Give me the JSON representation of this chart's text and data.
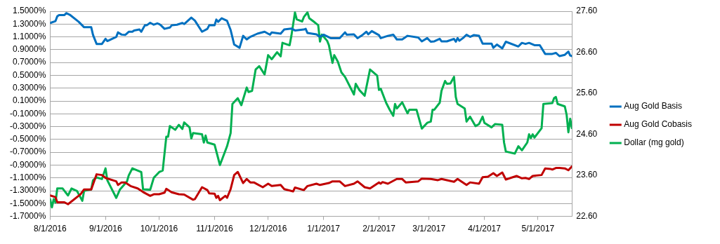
{
  "chart_data": {
    "type": "line",
    "xlim": [
      "2016-08-01",
      "2017-05-20"
    ],
    "xticks": [
      {
        "value": "2016-08-01",
        "label": "8/1/2016"
      },
      {
        "value": "2016-09-01",
        "label": "9/1/2016"
      },
      {
        "value": "2016-10-01",
        "label": "10/1/2016"
      },
      {
        "value": "2016-11-01",
        "label": "11/1/2016"
      },
      {
        "value": "2016-12-01",
        "label": "12/1/2016"
      },
      {
        "value": "2017-01-01",
        "label": "1/1/2017"
      },
      {
        "value": "2017-02-01",
        "label": "2/1/2017"
      },
      {
        "value": "2017-03-01",
        "label": "3/1/2017"
      },
      {
        "value": "2017-04-01",
        "label": "4/1/2017"
      },
      {
        "value": "2017-05-01",
        "label": "5/1/2017"
      }
    ],
    "ylim": [
      -1.7,
      1.5
    ],
    "yticks": [
      {
        "value": -1.7,
        "label": "-1.7000%"
      },
      {
        "value": -1.5,
        "label": "-1.5000%"
      },
      {
        "value": -1.3,
        "label": "-1.3000%"
      },
      {
        "value": -1.1,
        "label": "-1.1000%"
      },
      {
        "value": -0.9,
        "label": "-0.9000%"
      },
      {
        "value": -0.7,
        "label": "-0.7000%"
      },
      {
        "value": -0.5,
        "label": "-0.5000%"
      },
      {
        "value": -0.3,
        "label": "-0.3000%"
      },
      {
        "value": -0.1,
        "label": "-0.1000%"
      },
      {
        "value": 0.1,
        "label": "0.1000%"
      },
      {
        "value": 0.3,
        "label": "0.3000%"
      },
      {
        "value": 0.5,
        "label": "0.5000%"
      },
      {
        "value": 0.7,
        "label": "0.7000%"
      },
      {
        "value": 0.9,
        "label": "0.9000%"
      },
      {
        "value": 1.1,
        "label": "1.1000%"
      },
      {
        "value": 1.3,
        "label": "1.3000%"
      },
      {
        "value": 1.5,
        "label": "1.5000%"
      }
    ],
    "y2lim": [
      22.6,
      27.6
    ],
    "y2ticks": [
      {
        "value": 22.6,
        "label": "22.60"
      },
      {
        "value": 23.6,
        "label": "23.60"
      },
      {
        "value": 24.6,
        "label": "24.60"
      },
      {
        "value": 25.6,
        "label": "25.60"
      },
      {
        "value": 26.6,
        "label": "26.60"
      },
      {
        "value": 27.6,
        "label": "27.60"
      }
    ],
    "grid": "y",
    "legend": "right",
    "marker": "none",
    "line_style": "solid",
    "series": [
      {
        "name": "Aug Gold Basis",
        "color": "#0070c0",
        "x": [
          "2016-08-01",
          "2016-08-04",
          "2016-08-05",
          "2016-08-06",
          "2016-08-09",
          "2016-08-10",
          "2016-08-12",
          "2016-08-17",
          "2016-08-20",
          "2016-08-24",
          "2016-08-25",
          "2016-08-27",
          "2016-08-30",
          "2016-09-01",
          "2016-09-02",
          "2016-09-07",
          "2016-09-08",
          "2016-09-10",
          "2016-09-12",
          "2016-09-14",
          "2016-09-16",
          "2016-09-17",
          "2016-09-20",
          "2016-09-21",
          "2016-09-23",
          "2016-09-24",
          "2016-09-26",
          "2016-09-28",
          "2016-09-30",
          "2016-10-01",
          "2016-10-02",
          "2016-10-04",
          "2016-10-07",
          "2016-10-08",
          "2016-10-11",
          "2016-10-14",
          "2016-10-15",
          "2016-10-19",
          "2016-10-21",
          "2016-10-25",
          "2016-10-28",
          "2016-10-29",
          "2016-11-01",
          "2016-11-02",
          "2016-11-03",
          "2016-11-05",
          "2016-11-08",
          "2016-11-10",
          "2016-11-12",
          "2016-11-15",
          "2016-11-17",
          "2016-11-19",
          "2016-11-21",
          "2016-11-25",
          "2016-11-29",
          "2016-12-02",
          "2016-12-03",
          "2016-12-08",
          "2016-12-10",
          "2016-12-14",
          "2016-12-16",
          "2016-12-21",
          "2016-12-22",
          "2016-12-23",
          "2016-12-28",
          "2016-12-30",
          "2017-01-01",
          "2017-01-05",
          "2017-01-10",
          "2017-01-13",
          "2017-01-14",
          "2017-01-18",
          "2017-01-20",
          "2017-01-23",
          "2017-01-25",
          "2017-01-26",
          "2017-01-28",
          "2017-02-01",
          "2017-02-02",
          "2017-02-06",
          "2017-02-09",
          "2017-02-11",
          "2017-02-14",
          "2017-02-17",
          "2017-02-23",
          "2017-02-25",
          "2017-02-28",
          "2017-03-02",
          "2017-03-04",
          "2017-03-07",
          "2017-03-08",
          "2017-03-11",
          "2017-03-15",
          "2017-03-16",
          "2017-03-17",
          "2017-03-18",
          "2017-03-20",
          "2017-03-22",
          "2017-03-24",
          "2017-03-26",
          "2017-03-29",
          "2017-03-31",
          "2017-04-05",
          "2017-04-06",
          "2017-04-08",
          "2017-04-11",
          "2017-04-13",
          "2017-04-20",
          "2017-04-22",
          "2017-04-24",
          "2017-04-26",
          "2017-04-29",
          "2017-05-02",
          "2017-05-05",
          "2017-05-09",
          "2017-05-11",
          "2017-05-13",
          "2017-05-16",
          "2017-05-18",
          "2017-05-19",
          "2017-05-20"
        ],
        "values": [
          1.317,
          1.346,
          1.42,
          1.44,
          1.44,
          1.47,
          1.445,
          1.335,
          1.25,
          1.25,
          1.13,
          0.99,
          0.99,
          1.07,
          1.035,
          1.1,
          1.17,
          1.135,
          1.13,
          1.18,
          1.18,
          1.2,
          1.215,
          1.18,
          1.28,
          1.28,
          1.32,
          1.29,
          1.31,
          1.3,
          1.28,
          1.225,
          1.245,
          1.28,
          1.29,
          1.317,
          1.3,
          1.4,
          1.354,
          1.18,
          1.225,
          1.28,
          1.28,
          1.37,
          1.335,
          1.39,
          1.35,
          1.207,
          0.98,
          0.93,
          1.116,
          1.06,
          1.1,
          1.15,
          1.18,
          1.134,
          1.17,
          1.15,
          1.215,
          1.23,
          1.2,
          1.215,
          1.225,
          1.16,
          1.14,
          1.1,
          1.134,
          1.08,
          1.08,
          1.17,
          1.134,
          1.14,
          1.08,
          1.134,
          1.18,
          1.14,
          1.19,
          1.127,
          1.08,
          1.116,
          1.134,
          1.06,
          1.06,
          1.116,
          1.09,
          1.03,
          1.08,
          1.024,
          1.03,
          1.07,
          1.03,
          1.03,
          1.068,
          1.024,
          1.08,
          1.04,
          1.08,
          1.134,
          1.1,
          1.127,
          1.116,
          0.995,
          0.995,
          0.93,
          0.98,
          0.92,
          1.024,
          0.95,
          1.006,
          0.99,
          1.006,
          0.97,
          0.97,
          0.834,
          0.834,
          0.85,
          0.8,
          0.82,
          0.87,
          0.81,
          0.8
        ]
      },
      {
        "name": "Aug Gold Cobasis",
        "color": "#c00000",
        "x": [
          "2016-08-01",
          "2016-08-04",
          "2016-08-05",
          "2016-08-09",
          "2016-08-11",
          "2016-08-18",
          "2016-08-20",
          "2016-08-24",
          "2016-08-27",
          "2016-08-30",
          "2016-09-01",
          "2016-09-07",
          "2016-09-08",
          "2016-09-10",
          "2016-09-12",
          "2016-09-15",
          "2016-09-19",
          "2016-09-22",
          "2016-09-26",
          "2016-09-28",
          "2016-10-01",
          "2016-10-04",
          "2016-10-05",
          "2016-10-08",
          "2016-10-12",
          "2016-10-15",
          "2016-10-20",
          "2016-10-21",
          "2016-10-25",
          "2016-10-28",
          "2016-10-29",
          "2016-11-01",
          "2016-11-02",
          "2016-11-03",
          "2016-11-04",
          "2016-11-07",
          "2016-11-08",
          "2016-11-10",
          "2016-11-12",
          "2016-11-14",
          "2016-11-17",
          "2016-11-19",
          "2016-11-21",
          "2016-11-23",
          "2016-11-28",
          "2016-12-01",
          "2016-12-03",
          "2016-12-08",
          "2016-12-10",
          "2016-12-15",
          "2016-12-16",
          "2016-12-21",
          "2016-12-23",
          "2016-12-28",
          "2016-12-30",
          "2017-01-04",
          "2017-01-06",
          "2017-01-10",
          "2017-01-13",
          "2017-01-18",
          "2017-01-20",
          "2017-01-24",
          "2017-01-27",
          "2017-02-01",
          "2017-02-02",
          "2017-02-03",
          "2017-02-06",
          "2017-02-11",
          "2017-02-14",
          "2017-02-16",
          "2017-02-23",
          "2017-02-25",
          "2017-03-02",
          "2017-03-06",
          "2017-03-08",
          "2017-03-15",
          "2017-03-17",
          "2017-03-22",
          "2017-03-24",
          "2017-03-29",
          "2017-03-31",
          "2017-04-03",
          "2017-04-06",
          "2017-04-08",
          "2017-04-11",
          "2017-04-13",
          "2017-04-19",
          "2017-04-22",
          "2017-04-24",
          "2017-04-26",
          "2017-04-28",
          "2017-05-03",
          "2017-05-05",
          "2017-05-08",
          "2017-05-09",
          "2017-05-11",
          "2017-05-13",
          "2017-05-16",
          "2017-05-18",
          "2017-05-20"
        ],
        "values": [
          -1.373,
          -1.4,
          -1.48,
          -1.48,
          -1.51,
          -1.355,
          -1.28,
          -1.28,
          -1.044,
          -1.055,
          -1.1,
          -1.154,
          -1.21,
          -1.17,
          -1.17,
          -1.227,
          -1.264,
          -1.32,
          -1.38,
          -1.355,
          -1.355,
          -1.33,
          -1.27,
          -1.325,
          -1.355,
          -1.36,
          -1.44,
          -1.43,
          -1.245,
          -1.29,
          -1.34,
          -1.345,
          -1.41,
          -1.38,
          -1.447,
          -1.38,
          -1.41,
          -1.275,
          -1.055,
          -1.007,
          -1.18,
          -1.117,
          -1.17,
          -1.17,
          -1.245,
          -1.19,
          -1.227,
          -1.21,
          -1.275,
          -1.31,
          -1.25,
          -1.29,
          -1.227,
          -1.19,
          -1.21,
          -1.18,
          -1.154,
          -1.154,
          -1.227,
          -1.19,
          -1.154,
          -1.245,
          -1.264,
          -1.17,
          -1.19,
          -1.165,
          -1.19,
          -1.117,
          -1.117,
          -1.17,
          -1.154,
          -1.11,
          -1.117,
          -1.135,
          -1.117,
          -1.16,
          -1.117,
          -1.21,
          -1.17,
          -1.19,
          -1.09,
          -1.08,
          -1.026,
          -1.07,
          -1.015,
          -1.125,
          -1.07,
          -1.106,
          -1.1,
          -1.117,
          -1.07,
          -1.055,
          -0.952,
          -0.96,
          -0.97,
          -0.945,
          -0.945,
          -0.952,
          -0.98,
          -0.92
        ]
      },
      {
        "name": "Dollar (mg gold)",
        "color": "#00b050",
        "axis": "y2",
        "x": [
          "2016-08-01",
          "2016-08-02",
          "2016-08-03",
          "2016-08-04",
          "2016-08-05",
          "2016-08-08",
          "2016-08-11",
          "2016-08-13",
          "2016-08-16",
          "2016-08-19",
          "2016-08-20",
          "2016-08-24",
          "2016-08-25",
          "2016-08-27",
          "2016-08-30",
          "2016-09-01",
          "2016-09-02",
          "2016-09-07",
          "2016-09-09",
          "2016-09-13",
          "2016-09-14",
          "2016-09-16",
          "2016-09-21",
          "2016-09-22",
          "2016-09-26",
          "2016-09-28",
          "2016-10-01",
          "2016-10-03",
          "2016-10-05",
          "2016-10-06",
          "2016-10-07",
          "2016-10-10",
          "2016-10-12",
          "2016-10-14",
          "2016-10-15",
          "2016-10-18",
          "2016-10-19",
          "2016-10-20",
          "2016-10-25",
          "2016-10-26",
          "2016-10-27",
          "2016-10-28",
          "2016-11-01",
          "2016-11-03",
          "2016-11-04",
          "2016-11-08",
          "2016-11-10",
          "2016-11-11",
          "2016-11-14",
          "2016-11-16",
          "2016-11-19",
          "2016-11-20",
          "2016-11-22",
          "2016-11-24",
          "2016-11-26",
          "2016-11-29",
          "2016-12-01",
          "2016-12-03",
          "2016-12-06",
          "2016-12-08",
          "2016-12-09",
          "2016-12-13",
          "2016-12-14",
          "2016-12-16",
          "2016-12-17",
          "2016-12-20",
          "2016-12-21",
          "2016-12-23",
          "2016-12-24",
          "2016-12-27",
          "2016-12-29",
          "2016-12-30",
          "2016-12-31",
          "2017-01-03",
          "2017-01-04",
          "2017-01-06",
          "2017-01-07",
          "2017-01-09",
          "2017-01-11",
          "2017-01-13",
          "2017-01-18",
          "2017-01-19",
          "2017-01-21",
          "2017-01-24",
          "2017-01-27",
          "2017-01-31",
          "2017-02-01",
          "2017-02-02",
          "2017-02-05",
          "2017-02-07",
          "2017-02-09",
          "2017-02-10",
          "2017-02-11",
          "2017-02-14",
          "2017-02-17",
          "2017-02-18",
          "2017-02-22",
          "2017-02-25",
          "2017-02-28",
          "2017-03-02",
          "2017-03-03",
          "2017-03-04",
          "2017-03-07",
          "2017-03-08",
          "2017-03-10",
          "2017-03-11",
          "2017-03-13",
          "2017-03-15",
          "2017-03-16",
          "2017-03-17",
          "2017-03-21",
          "2017-03-22",
          "2017-03-24",
          "2017-03-27",
          "2017-03-29",
          "2017-03-31",
          "2017-04-01",
          "2017-04-05",
          "2017-04-07",
          "2017-04-11",
          "2017-04-12",
          "2017-04-13",
          "2017-04-18",
          "2017-04-20",
          "2017-04-22",
          "2017-04-25",
          "2017-04-26",
          "2017-04-27",
          "2017-04-28",
          "2017-04-29",
          "2017-05-03",
          "2017-05-04",
          "2017-05-09",
          "2017-05-10",
          "2017-05-11",
          "2017-05-12",
          "2017-05-16",
          "2017-05-17",
          "2017-05-18",
          "2017-05-19",
          "2017-05-20"
        ],
        "values": [
          23.02,
          22.82,
          23.02,
          22.94,
          23.28,
          23.28,
          23.11,
          23.28,
          23.22,
          22.98,
          23.22,
          23.26,
          23.48,
          23.55,
          23.51,
          23.77,
          23.48,
          23.05,
          23.25,
          23.45,
          23.6,
          23.77,
          23.68,
          23.26,
          23.25,
          23.54,
          23.68,
          23.72,
          24.54,
          24.54,
          24.8,
          24.71,
          24.83,
          24.73,
          24.89,
          24.77,
          24.5,
          24.63,
          24.6,
          24.4,
          24.57,
          24.4,
          24.35,
          24.02,
          23.85,
          24.31,
          24.63,
          25.34,
          25.48,
          25.31,
          25.74,
          25.63,
          25.66,
          26.18,
          26.26,
          26.06,
          26.53,
          26.43,
          26.6,
          26.5,
          26.83,
          26.77,
          27.0,
          27.57,
          27.4,
          27.35,
          27.46,
          27.57,
          27.43,
          27.33,
          27.26,
          26.86,
          27.03,
          26.88,
          26.77,
          26.34,
          26.53,
          26.37,
          26.11,
          26.0,
          25.57,
          25.83,
          25.68,
          25.54,
          26.18,
          26.03,
          25.68,
          25.71,
          25.37,
          25.2,
          25.05,
          25.34,
          25.23,
          25.38,
          25.11,
          25.2,
          25.2,
          24.74,
          24.88,
          24.91,
          25.2,
          25.2,
          25.37,
          25.66,
          25.9,
          25.83,
          25.84,
          26.0,
          25.51,
          25.34,
          25.23,
          24.91,
          25.03,
          24.8,
          24.85,
          25.03,
          24.88,
          24.77,
          24.85,
          24.83,
          24.4,
          24.18,
          24.13,
          24.31,
          24.21,
          24.4,
          24.6,
          24.51,
          24.6,
          24.52,
          24.75,
          25.34,
          25.36,
          25.48,
          25.51,
          25.34,
          25.28,
          25.08,
          24.65,
          24.98,
          24.75
        ]
      }
    ]
  }
}
